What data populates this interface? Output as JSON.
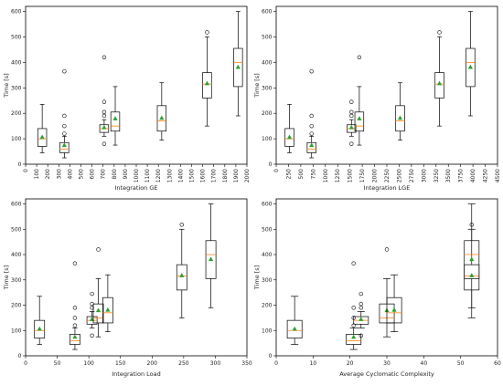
{
  "colors": {
    "box": "#000000",
    "median": "#ff7f0e",
    "mean": "#2ca02c",
    "flier": "#000000",
    "frame": "#000000"
  },
  "chart_data": [
    {
      "type": "box",
      "xlabel": "Integration GE",
      "ylabel": "Time [s]",
      "xlim": [
        0,
        2000
      ],
      "ylim": [
        0,
        620
      ],
      "xticks": [
        0,
        100,
        200,
        300,
        400,
        500,
        600,
        700,
        800,
        900,
        1000,
        1100,
        1200,
        1300,
        1400,
        1500,
        1600,
        1700,
        1800,
        1900,
        2000
      ],
      "yticks": [
        0,
        100,
        200,
        300,
        400,
        500,
        600
      ],
      "box_width": 80,
      "boxes": [
        {
          "x": 150,
          "whislo": 45,
          "q1": 70,
          "median": 100,
          "q3": 140,
          "whishi": 235,
          "mean": 107,
          "fliers": []
        },
        {
          "x": 350,
          "whislo": 25,
          "q1": 45,
          "median": 60,
          "q3": 85,
          "whishi": 110,
          "mean": 75,
          "fliers": [
            120,
            150,
            190,
            365
          ]
        },
        {
          "x": 810,
          "whislo": 75,
          "q1": 130,
          "median": 150,
          "q3": 205,
          "whishi": 305,
          "mean": 180,
          "fliers": []
        },
        {
          "x": 710,
          "whislo": 110,
          "q1": 125,
          "median": 140,
          "q3": 155,
          "whishi": 175,
          "mean": 145,
          "fliers": [
            80,
            190,
            205,
            245,
            420
          ]
        },
        {
          "x": 1230,
          "whislo": 95,
          "q1": 130,
          "median": 170,
          "q3": 230,
          "whishi": 320,
          "mean": 182,
          "fliers": []
        },
        {
          "x": 1640,
          "whislo": 150,
          "q1": 260,
          "median": 315,
          "q3": 360,
          "whishi": 500,
          "mean": 318,
          "fliers": [
            518
          ]
        },
        {
          "x": 1920,
          "whislo": 190,
          "q1": 305,
          "median": 400,
          "q3": 455,
          "whishi": 600,
          "mean": 382,
          "fliers": []
        }
      ]
    },
    {
      "type": "box",
      "xlabel": "Integration LGE",
      "ylabel": "Time [s]",
      "xlim": [
        0,
        4500
      ],
      "ylim": [
        0,
        620
      ],
      "xticks": [
        0,
        250,
        500,
        750,
        1000,
        1250,
        1500,
        1750,
        2000,
        2250,
        2500,
        2750,
        3000,
        3250,
        3500,
        3750,
        4000,
        4250,
        4500
      ],
      "yticks": [
        0,
        100,
        200,
        300,
        400,
        500,
        600
      ],
      "box_width": 180,
      "boxes": [
        {
          "x": 270,
          "whislo": 45,
          "q1": 70,
          "median": 100,
          "q3": 140,
          "whishi": 235,
          "mean": 107,
          "fliers": []
        },
        {
          "x": 720,
          "whislo": 25,
          "q1": 45,
          "median": 60,
          "q3": 85,
          "whishi": 110,
          "mean": 75,
          "fliers": [
            120,
            150,
            190,
            365
          ]
        },
        {
          "x": 1530,
          "whislo": 110,
          "q1": 125,
          "median": 140,
          "q3": 155,
          "whishi": 175,
          "mean": 145,
          "fliers": [
            80,
            190,
            205,
            245
          ]
        },
        {
          "x": 1690,
          "whislo": 75,
          "q1": 130,
          "median": 150,
          "q3": 205,
          "whishi": 305,
          "mean": 180,
          "fliers": [
            420
          ]
        },
        {
          "x": 2520,
          "whislo": 95,
          "q1": 130,
          "median": 170,
          "q3": 230,
          "whishi": 320,
          "mean": 182,
          "fliers": []
        },
        {
          "x": 3320,
          "whislo": 150,
          "q1": 260,
          "median": 315,
          "q3": 360,
          "whishi": 500,
          "mean": 318,
          "fliers": [
            518
          ]
        },
        {
          "x": 3950,
          "whislo": 190,
          "q1": 305,
          "median": 400,
          "q3": 455,
          "whishi": 600,
          "mean": 382,
          "fliers": []
        }
      ]
    },
    {
      "type": "box",
      "xlabel": "Integration Load",
      "ylabel": "Time [s]",
      "xlim": [
        0,
        350
      ],
      "ylim": [
        0,
        620
      ],
      "xticks": [
        0,
        50,
        100,
        150,
        200,
        250,
        300,
        350
      ],
      "yticks": [
        0,
        100,
        200,
        300,
        400,
        500,
        600
      ],
      "box_width": 16,
      "boxes": [
        {
          "x": 22,
          "whislo": 45,
          "q1": 70,
          "median": 100,
          "q3": 140,
          "whishi": 235,
          "mean": 107,
          "fliers": []
        },
        {
          "x": 78,
          "whislo": 25,
          "q1": 45,
          "median": 60,
          "q3": 85,
          "whishi": 110,
          "mean": 75,
          "fliers": [
            120,
            150,
            190,
            365
          ]
        },
        {
          "x": 105,
          "whislo": 110,
          "q1": 125,
          "median": 140,
          "q3": 155,
          "whishi": 175,
          "mean": 145,
          "fliers": [
            80,
            190,
            205,
            245
          ]
        },
        {
          "x": 115,
          "whislo": 75,
          "q1": 130,
          "median": 150,
          "q3": 205,
          "whishi": 305,
          "mean": 180,
          "fliers": [
            420
          ]
        },
        {
          "x": 130,
          "whislo": 95,
          "q1": 130,
          "median": 170,
          "q3": 230,
          "whishi": 320,
          "mean": 182,
          "fliers": []
        },
        {
          "x": 247,
          "whislo": 150,
          "q1": 260,
          "median": 315,
          "q3": 360,
          "whishi": 500,
          "mean": 318,
          "fliers": [
            518
          ]
        },
        {
          "x": 293,
          "whislo": 190,
          "q1": 305,
          "median": 400,
          "q3": 455,
          "whishi": 600,
          "mean": 382,
          "fliers": []
        }
      ]
    },
    {
      "type": "box",
      "xlabel": "Average Cyclomatic Complexity",
      "ylabel": "Time [s]",
      "xlim": [
        0,
        60
      ],
      "ylim": [
        0,
        620
      ],
      "xticks": [
        0,
        10,
        20,
        30,
        40,
        50,
        60
      ],
      "yticks": [
        0,
        100,
        200,
        300,
        400,
        500,
        600
      ],
      "box_width": 4,
      "boxes": [
        {
          "x": 5,
          "whislo": 45,
          "q1": 70,
          "median": 100,
          "q3": 140,
          "whishi": 235,
          "mean": 107,
          "fliers": []
        },
        {
          "x": 21,
          "whislo": 25,
          "q1": 45,
          "median": 60,
          "q3": 85,
          "whishi": 110,
          "mean": 75,
          "fliers": [
            120,
            150,
            190,
            365
          ]
        },
        {
          "x": 23,
          "whislo": 110,
          "q1": 125,
          "median": 140,
          "q3": 155,
          "whishi": 175,
          "mean": 145,
          "fliers": [
            80,
            190,
            205,
            245
          ]
        },
        {
          "x": 30,
          "whislo": 75,
          "q1": 130,
          "median": 150,
          "q3": 205,
          "whishi": 305,
          "mean": 180,
          "fliers": [
            420
          ]
        },
        {
          "x": 32,
          "whislo": 95,
          "q1": 130,
          "median": 170,
          "q3": 230,
          "whishi": 320,
          "mean": 182,
          "fliers": []
        },
        {
          "x": 53,
          "whislo": 150,
          "q1": 260,
          "median": 315,
          "q3": 360,
          "whishi": 500,
          "mean": 318,
          "fliers": [
            518
          ]
        },
        {
          "x": 53,
          "whislo": 190,
          "q1": 305,
          "median": 400,
          "q3": 455,
          "whishi": 600,
          "mean": 382,
          "fliers": []
        }
      ]
    }
  ]
}
